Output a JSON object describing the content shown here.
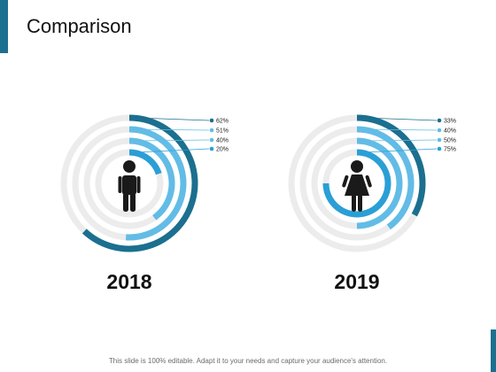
{
  "slide": {
    "title": "Comparison",
    "footer": "This slide is 100% editable. Adapt it to your needs and capture your audience's attention."
  },
  "colors": {
    "track": "#ececec",
    "dark": "#1b6f8f",
    "light": "#62bce6",
    "mid": "#2a9fd6",
    "icon": "#1a1a1a",
    "accent": "#1b6f8f"
  },
  "icons": [
    "male-person-icon",
    "female-person-icon"
  ],
  "chart_data": [
    {
      "type": "radial-bar",
      "category": "2018",
      "icon": "male-person-icon",
      "rings": [
        {
          "label": "62%",
          "value": 62,
          "color": "#1b6f8f"
        },
        {
          "label": "51%",
          "value": 51,
          "color": "#62bce6"
        },
        {
          "label": "40%",
          "value": 40,
          "color": "#62bce6"
        },
        {
          "label": "20%",
          "value": 20,
          "color": "#2a9fd6"
        }
      ]
    },
    {
      "type": "radial-bar",
      "category": "2019",
      "icon": "female-person-icon",
      "rings": [
        {
          "label": "33%",
          "value": 33,
          "color": "#1b6f8f"
        },
        {
          "label": "40%",
          "value": 40,
          "color": "#62bce6"
        },
        {
          "label": "50%",
          "value": 50,
          "color": "#62bce6"
        },
        {
          "label": "75%",
          "value": 75,
          "color": "#2a9fd6"
        }
      ]
    }
  ]
}
